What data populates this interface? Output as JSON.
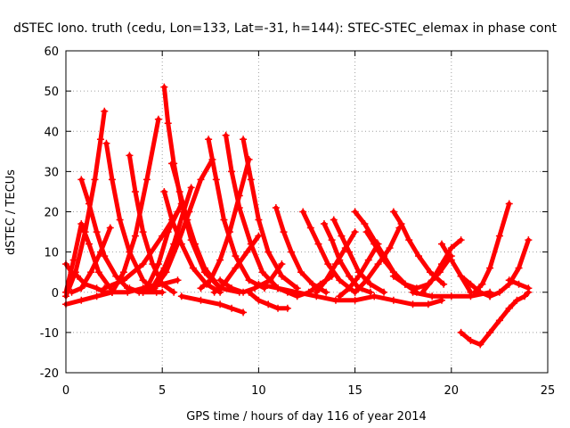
{
  "chart_data": {
    "type": "line",
    "title": "dSTEC Iono. truth (cedu, Lon=133, Lat=-31, h=144): STEC-STEC_elemax in phase cont",
    "xlabel": "GPS time / hours of day 116 of year 2014",
    "ylabel": "dSTEC  / TECUs",
    "xlim": [
      0,
      25
    ],
    "ylim": [
      -20,
      60
    ],
    "xticks": [
      0,
      5,
      10,
      15,
      20,
      25
    ],
    "yticks": [
      -20,
      -10,
      0,
      10,
      20,
      30,
      40,
      50,
      60
    ],
    "grid": true,
    "legend": "none",
    "marker": "plus",
    "color": "#ff0000",
    "series": [
      {
        "x": [
          0.0,
          0.3,
          0.6,
          1.0,
          1.6,
          2.0,
          2.4
        ],
        "y": [
          7,
          5,
          4,
          2,
          1,
          0,
          0
        ]
      },
      {
        "x": [
          0.0,
          0.5,
          1.0,
          1.5,
          1.8,
          2.0
        ],
        "y": [
          -1,
          5,
          15,
          28,
          38,
          45
        ]
      },
      {
        "x": [
          0.0,
          0.4,
          0.8,
          1.2,
          1.7,
          2.3
        ],
        "y": [
          0,
          8,
          17,
          12,
          5,
          1
        ]
      },
      {
        "x": [
          0.8,
          1.2,
          1.6,
          2.0,
          2.6,
          3.2,
          4.0,
          5.0
        ],
        "y": [
          28,
          22,
          15,
          9,
          4,
          1,
          0,
          0
        ]
      },
      {
        "x": [
          0.3,
          0.8,
          1.3,
          1.8,
          2.3
        ],
        "y": [
          0,
          1,
          5,
          10,
          16
        ]
      },
      {
        "x": [
          2.1,
          2.4,
          2.8,
          3.3,
          4.0,
          4.7
        ],
        "y": [
          37,
          28,
          18,
          10,
          3,
          0
        ]
      },
      {
        "x": [
          0.0,
          0.8,
          1.6,
          2.4,
          3.2,
          4.0,
          5.0,
          5.8
        ],
        "y": [
          -3,
          -2,
          -1,
          0,
          0,
          1,
          2,
          3
        ]
      },
      {
        "x": [
          3.3,
          3.6,
          4.0,
          4.5,
          5.0,
          5.6
        ],
        "y": [
          34,
          25,
          15,
          7,
          2,
          0
        ]
      },
      {
        "x": [
          2.4,
          3.0,
          3.6,
          4.2,
          4.8
        ],
        "y": [
          0,
          5,
          14,
          28,
          43
        ]
      },
      {
        "x": [
          2.0,
          3.0,
          4.0,
          5.0,
          5.8
        ],
        "y": [
          1,
          3,
          7,
          14,
          20
        ]
      },
      {
        "x": [
          3.3,
          3.8,
          4.3,
          4.8,
          5.3,
          6.0
        ],
        "y": [
          1,
          0,
          2,
          7,
          15,
          22
        ]
      },
      {
        "x": [
          5.1,
          5.3,
          5.6,
          6.0,
          6.5,
          7.2,
          8.0
        ],
        "y": [
          51,
          42,
          32,
          22,
          13,
          5,
          1
        ]
      },
      {
        "x": [
          5.1,
          5.5,
          6.0,
          6.6,
          7.3,
          8.0
        ],
        "y": [
          25,
          18,
          12,
          6,
          2,
          0
        ]
      },
      {
        "x": [
          4.0,
          4.6,
          5.2,
          5.8,
          6.4,
          7.0,
          7.6
        ],
        "y": [
          0,
          1,
          5,
          12,
          20,
          28,
          33
        ]
      },
      {
        "x": [
          5.5,
          5.9,
          6.3,
          6.7,
          7.2,
          8.0,
          9.0
        ],
        "y": [
          32,
          25,
          18,
          12,
          6,
          1,
          0
        ]
      },
      {
        "x": [
          4.6,
          5.1,
          5.6,
          6.1,
          6.5
        ],
        "y": [
          2,
          6,
          12,
          20,
          26
        ]
      },
      {
        "x": [
          6.0,
          7.0,
          8.0,
          8.6,
          9.2
        ],
        "y": [
          -1,
          -2,
          -3,
          -4,
          -5
        ]
      },
      {
        "x": [
          7.4,
          7.8,
          8.2,
          8.8,
          9.5,
          10.3
        ],
        "y": [
          38,
          28,
          18,
          9,
          3,
          1
        ]
      },
      {
        "x": [
          8.3,
          8.6,
          9.0,
          9.6,
          10.2,
          11.0
        ],
        "y": [
          39,
          30,
          21,
          12,
          5,
          1
        ]
      },
      {
        "x": [
          7.0,
          7.5,
          8.0,
          8.5,
          9.0,
          9.5
        ],
        "y": [
          1,
          3,
          8,
          15,
          24,
          33
        ]
      },
      {
        "x": [
          9.2,
          9.6,
          10.0,
          10.5,
          11.2,
          12.0
        ],
        "y": [
          38,
          28,
          18,
          10,
          4,
          1
        ]
      },
      {
        "x": [
          7.7,
          8.2,
          8.8,
          9.4,
          10.0
        ],
        "y": [
          0,
          2,
          6,
          10,
          14
        ]
      },
      {
        "x": [
          9.5,
          10.0,
          10.5,
          11.0,
          11.5
        ],
        "y": [
          0,
          -2,
          -3,
          -4,
          -4
        ]
      },
      {
        "x": [
          8.0,
          8.6,
          9.2,
          9.8,
          10.6,
          11.2
        ],
        "y": [
          3,
          1,
          0,
          1,
          3,
          7
        ]
      },
      {
        "x": [
          10.9,
          11.3,
          11.7,
          12.2,
          12.8,
          13.5
        ],
        "y": [
          21,
          15,
          10,
          5,
          2,
          0
        ]
      },
      {
        "x": [
          12.3,
          12.7,
          13.1,
          13.6,
          14.2,
          15.0
        ],
        "y": [
          20,
          16,
          12,
          7,
          3,
          0
        ]
      },
      {
        "x": [
          10.0,
          11.0,
          12.0,
          13.0,
          14.0,
          15.0,
          16.0
        ],
        "y": [
          2,
          1,
          0,
          -1,
          -2,
          -2,
          -1
        ]
      },
      {
        "x": [
          11.0,
          11.5,
          12.0,
          12.6,
          13.2,
          13.8
        ],
        "y": [
          1,
          0,
          -1,
          0,
          2,
          4
        ]
      },
      {
        "x": [
          13.4,
          13.8,
          14.2,
          14.7,
          15.2,
          15.8
        ],
        "y": [
          17,
          13,
          8,
          4,
          1,
          0
        ]
      },
      {
        "x": [
          13.9,
          14.3,
          14.7,
          15.2,
          15.8,
          16.5
        ],
        "y": [
          18,
          14,
          10,
          5,
          2,
          0
        ]
      },
      {
        "x": [
          13.0,
          13.5,
          14.0,
          14.5,
          15.0
        ],
        "y": [
          0,
          3,
          7,
          11,
          15
        ]
      },
      {
        "x": [
          14.2,
          14.7,
          15.2,
          15.7,
          16.2
        ],
        "y": [
          -1,
          1,
          4,
          8,
          12
        ]
      },
      {
        "x": [
          15.0,
          15.5,
          16.0,
          16.5,
          17.0,
          17.6
        ],
        "y": [
          20,
          17,
          13,
          9,
          5,
          2
        ]
      },
      {
        "x": [
          15.6,
          16.0,
          16.5,
          17.0,
          17.6,
          18.2
        ],
        "y": [
          15,
          12,
          8,
          5,
          2,
          0
        ]
      },
      {
        "x": [
          15.0,
          15.6,
          16.2,
          16.8,
          17.3
        ],
        "y": [
          0,
          3,
          7,
          11,
          16
        ]
      },
      {
        "x": [
          17.0,
          17.4,
          17.8,
          18.3,
          18.9,
          19.6
        ],
        "y": [
          20,
          17,
          13,
          9,
          5,
          2
        ]
      },
      {
        "x": [
          16.0,
          17.0,
          18.0,
          18.8,
          19.5
        ],
        "y": [
          -1,
          -2,
          -3,
          -3,
          -2
        ]
      },
      {
        "x": [
          17.0,
          17.6,
          18.2,
          18.8,
          19.4,
          20.0
        ],
        "y": [
          4,
          2,
          1,
          2,
          5,
          9
        ]
      },
      {
        "x": [
          18.5,
          19.0,
          19.5,
          20.0,
          20.5
        ],
        "y": [
          0,
          3,
          7,
          11,
          13
        ]
      },
      {
        "x": [
          19.5,
          20.0,
          20.5,
          21.0
        ],
        "y": [
          12,
          8,
          4,
          0
        ]
      },
      {
        "x": [
          18.0,
          19.0,
          20.0,
          21.0,
          22.0
        ],
        "y": [
          0,
          -1,
          -1,
          -1,
          0
        ]
      },
      {
        "x": [
          20.5,
          21.0,
          21.5,
          22.0,
          22.5,
          23.0
        ],
        "y": [
          -10,
          -12,
          -13,
          -10,
          -7,
          -4
        ]
      },
      {
        "x": [
          23.0,
          23.4,
          23.8,
          24.0
        ],
        "y": [
          -4,
          -2,
          -1,
          0
        ]
      },
      {
        "x": [
          21.2,
          21.6,
          22.0,
          22.5,
          23.0
        ],
        "y": [
          0,
          2,
          6,
          14,
          22
        ]
      },
      {
        "x": [
          22.0,
          22.5,
          23.0,
          23.5,
          24.0
        ],
        "y": [
          -1,
          0,
          2,
          6,
          13
        ]
      },
      {
        "x": [
          20.5,
          21.0,
          21.5,
          22.0
        ],
        "y": [
          4,
          2,
          0,
          -1
        ]
      },
      {
        "x": [
          23.0,
          23.5,
          24.0
        ],
        "y": [
          3,
          2,
          1
        ]
      }
    ]
  }
}
